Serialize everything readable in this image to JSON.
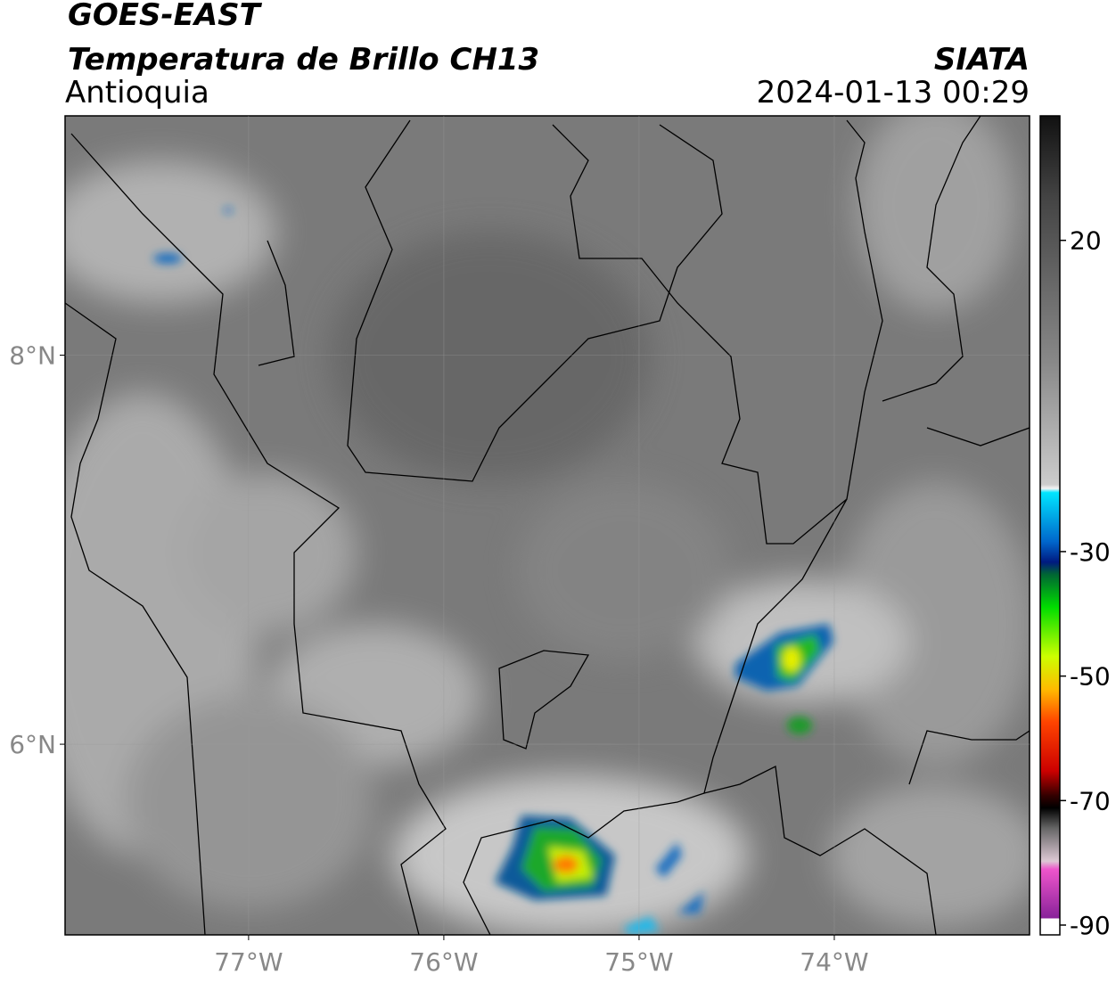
{
  "header": {
    "title": "GOES-EAST",
    "subtitle": "Temperatura de Brillo CH13",
    "region": "Antioquia",
    "source": "SIATA",
    "datetime": "2024-01-13 00:29"
  },
  "map": {
    "xlim": [
      -77.94,
      -73.0
    ],
    "ylim": [
      5.02,
      9.23
    ],
    "xticks": [
      {
        "value": -77,
        "label": "77°W"
      },
      {
        "value": -76,
        "label": "76°W"
      },
      {
        "value": -75,
        "label": "75°W"
      },
      {
        "value": -74,
        "label": "74°W"
      }
    ],
    "yticks": [
      {
        "value": 8,
        "label": "8°N"
      },
      {
        "value": 6,
        "label": "6°N"
      }
    ]
  },
  "colorbar": {
    "lim": [
      -90,
      40
    ],
    "ticks": [
      20,
      -30,
      -50,
      -70,
      -90
    ]
  }
}
